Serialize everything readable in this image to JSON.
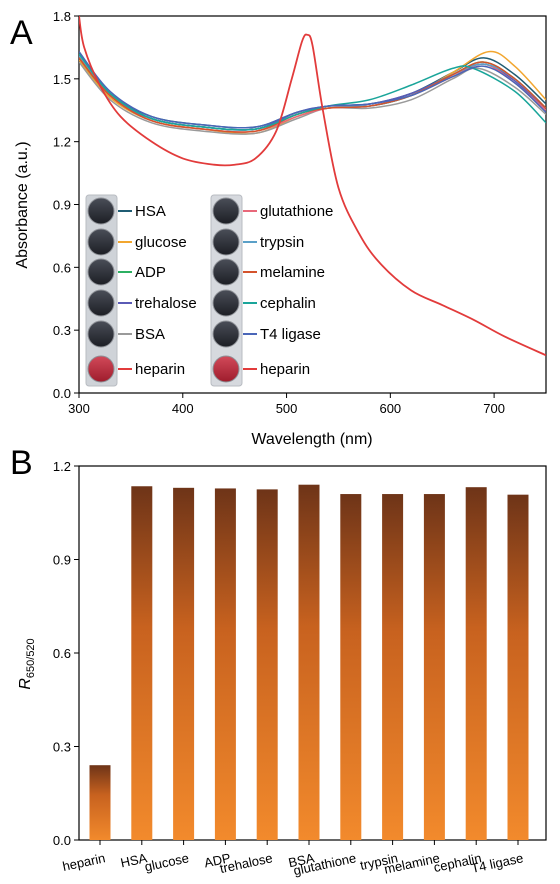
{
  "panels": {
    "a_letter": "A",
    "b_letter": "B"
  },
  "chart_data": [
    {
      "type": "line",
      "xlabel": "Wavelength (nm)",
      "ylabel": "Absorbance (a.u.)",
      "xlim": [
        300,
        750
      ],
      "ylim": [
        0.0,
        1.8
      ],
      "xticks": [
        300,
        400,
        500,
        600,
        700
      ],
      "yticks": [
        0.0,
        0.3,
        0.6,
        0.9,
        1.2,
        1.5,
        1.8
      ],
      "grid": false,
      "legend_placement": "inside-lower-left",
      "legend_left": [
        "HSA",
        "glucose",
        "ADP",
        "trehalose",
        "BSA",
        "heparin"
      ],
      "legend_right": [
        "glutathione",
        "trypsin",
        "melamine",
        "cephalin",
        "T4 ligase",
        "heparin"
      ],
      "series": [
        {
          "name": "HSA",
          "color": "#1f5c73",
          "x": [
            300,
            330,
            370,
            420,
            470,
            510,
            540,
            580,
            620,
            660,
            690,
            720,
            750
          ],
          "y": [
            1.62,
            1.43,
            1.32,
            1.28,
            1.27,
            1.34,
            1.37,
            1.38,
            1.43,
            1.53,
            1.6,
            1.52,
            1.38
          ]
        },
        {
          "name": "glucose",
          "color": "#f2a62f",
          "x": [
            300,
            330,
            370,
            420,
            470,
            510,
            540,
            580,
            620,
            660,
            695,
            720,
            750
          ],
          "y": [
            1.59,
            1.41,
            1.3,
            1.26,
            1.24,
            1.32,
            1.36,
            1.37,
            1.42,
            1.53,
            1.63,
            1.56,
            1.4
          ]
        },
        {
          "name": "ADP",
          "color": "#2cb062",
          "x": [
            300,
            330,
            370,
            420,
            470,
            510,
            540,
            580,
            620,
            660,
            690,
            720,
            750
          ],
          "y": [
            1.6,
            1.42,
            1.31,
            1.27,
            1.26,
            1.33,
            1.37,
            1.37,
            1.42,
            1.52,
            1.58,
            1.5,
            1.36
          ]
        },
        {
          "name": "trehalose",
          "color": "#5a5ab5",
          "x": [
            300,
            330,
            370,
            420,
            470,
            510,
            540,
            580,
            620,
            660,
            690,
            720,
            750
          ],
          "y": [
            1.61,
            1.42,
            1.31,
            1.27,
            1.26,
            1.34,
            1.37,
            1.38,
            1.43,
            1.52,
            1.57,
            1.49,
            1.35
          ]
        },
        {
          "name": "BSA",
          "color": "#9a9a9a",
          "x": [
            300,
            330,
            370,
            420,
            470,
            510,
            540,
            580,
            620,
            660,
            685,
            720,
            750
          ],
          "y": [
            1.58,
            1.4,
            1.29,
            1.25,
            1.24,
            1.31,
            1.36,
            1.36,
            1.4,
            1.5,
            1.55,
            1.46,
            1.33
          ]
        },
        {
          "name": "glutathione",
          "color": "#e8687a",
          "x": [
            300,
            330,
            370,
            420,
            470,
            510,
            540,
            580,
            620,
            660,
            690,
            720,
            750
          ],
          "y": [
            1.6,
            1.42,
            1.3,
            1.26,
            1.25,
            1.32,
            1.36,
            1.37,
            1.42,
            1.51,
            1.57,
            1.48,
            1.35
          ]
        },
        {
          "name": "trypsin",
          "color": "#5aa0c8",
          "x": [
            300,
            330,
            370,
            420,
            470,
            510,
            540,
            580,
            620,
            660,
            690,
            720,
            750
          ],
          "y": [
            1.61,
            1.43,
            1.31,
            1.27,
            1.26,
            1.33,
            1.37,
            1.37,
            1.42,
            1.52,
            1.57,
            1.5,
            1.36
          ]
        },
        {
          "name": "melamine",
          "color": "#d4532c",
          "x": [
            300,
            330,
            370,
            420,
            470,
            510,
            540,
            580,
            620,
            660,
            690,
            720,
            750
          ],
          "y": [
            1.6,
            1.42,
            1.3,
            1.26,
            1.25,
            1.33,
            1.36,
            1.37,
            1.42,
            1.52,
            1.58,
            1.5,
            1.36
          ]
        },
        {
          "name": "cephalin",
          "color": "#1aa59a",
          "x": [
            300,
            330,
            370,
            420,
            470,
            510,
            540,
            580,
            620,
            660,
            680,
            720,
            750
          ],
          "y": [
            1.62,
            1.43,
            1.31,
            1.27,
            1.26,
            1.33,
            1.37,
            1.4,
            1.47,
            1.55,
            1.55,
            1.44,
            1.29
          ]
        },
        {
          "name": "T4 ligase",
          "color": "#4a66b8",
          "x": [
            300,
            330,
            370,
            420,
            470,
            510,
            540,
            580,
            620,
            660,
            690,
            720,
            750
          ],
          "y": [
            1.63,
            1.44,
            1.32,
            1.28,
            1.27,
            1.34,
            1.37,
            1.38,
            1.42,
            1.51,
            1.56,
            1.48,
            1.34
          ]
        },
        {
          "name": "heparin",
          "color": "#e23b3b",
          "x": [
            300,
            305,
            320,
            340,
            370,
            400,
            430,
            450,
            470,
            490,
            505,
            515,
            520,
            525,
            535,
            550,
            570,
            590,
            620,
            650,
            680,
            710,
            750
          ],
          "y": [
            1.8,
            1.65,
            1.47,
            1.32,
            1.2,
            1.12,
            1.09,
            1.09,
            1.12,
            1.25,
            1.5,
            1.68,
            1.71,
            1.66,
            1.35,
            0.98,
            0.76,
            0.62,
            0.49,
            0.42,
            0.35,
            0.27,
            0.18
          ]
        }
      ]
    },
    {
      "type": "bar",
      "xlabel": "",
      "ylabel": "R650/520",
      "ylabel_main": "R",
      "ylabel_sub": "650/520",
      "ylim": [
        0.0,
        1.2
      ],
      "yticks": [
        0.0,
        0.3,
        0.6,
        0.9,
        1.2
      ],
      "grid": false,
      "categories": [
        "heparin",
        "HSA",
        "glucose",
        "ADP",
        "trehalose",
        "BSA",
        "glutathione",
        "trypsin",
        "melamine",
        "cephalin",
        "T4 ligase"
      ],
      "values": [
        0.24,
        1.135,
        1.13,
        1.128,
        1.125,
        1.14,
        1.11,
        1.11,
        1.11,
        1.132,
        1.108
      ],
      "colors": {
        "top": "#7a3b1a",
        "bottom": "#f08a2a"
      }
    }
  ]
}
